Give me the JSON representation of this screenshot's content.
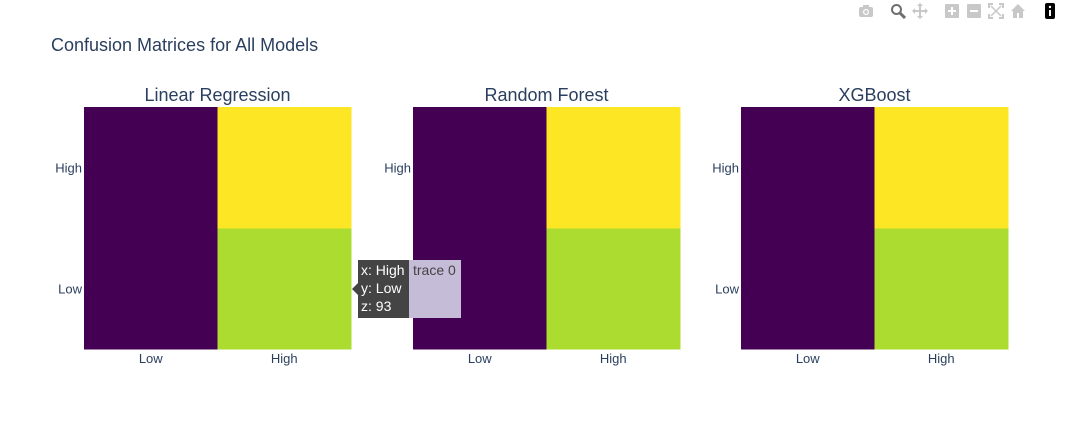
{
  "title": "Confusion Matrices for All Models",
  "colors": {
    "title": "#2a3f5f",
    "tick": "#2a3f5f",
    "modebar_icon": "#c8c8c8",
    "modebar_icon_active": "#8c8c8c",
    "hover_bg": "#444444",
    "hover_trace_bg": "#c5bcd8"
  },
  "modebar": {
    "buttons": [
      {
        "name": "camera-icon"
      },
      {
        "name": "zoom-icon"
      },
      {
        "name": "pan-icon"
      },
      {
        "name": "zoom-in-icon"
      },
      {
        "name": "zoom-out-icon"
      },
      {
        "name": "autoscale-icon"
      },
      {
        "name": "home-icon"
      },
      {
        "name": "plotly-logo-icon"
      }
    ]
  },
  "chart_data": [
    {
      "type": "heatmap",
      "title": "Linear Regression",
      "x": [
        "Low",
        "High"
      ],
      "y": [
        "Low",
        "High"
      ],
      "z": [
        [
          null,
          93
        ],
        [
          null,
          null
        ]
      ],
      "cell_colors": [
        [
          "#440154",
          "#addc30"
        ],
        [
          "#440154",
          "#fde725"
        ]
      ]
    },
    {
      "type": "heatmap",
      "title": "Random Forest",
      "x": [
        "Low",
        "High"
      ],
      "y": [
        "Low",
        "High"
      ],
      "z": [
        [
          null,
          null
        ],
        [
          null,
          null
        ]
      ],
      "cell_colors": [
        [
          "#440154",
          "#addc30"
        ],
        [
          "#440154",
          "#fde725"
        ]
      ]
    },
    {
      "type": "heatmap",
      "title": "XGBoost",
      "x": [
        "Low",
        "High"
      ],
      "y": [
        "Low",
        "High"
      ],
      "z": [
        [
          null,
          null
        ],
        [
          null,
          null
        ]
      ],
      "cell_colors": [
        [
          "#440154",
          "#addc30"
        ],
        [
          "#440154",
          "#fde725"
        ]
      ]
    }
  ],
  "hover": {
    "lines": [
      "x: High",
      "y: Low",
      "z: 93"
    ],
    "trace_label": "trace 0"
  }
}
